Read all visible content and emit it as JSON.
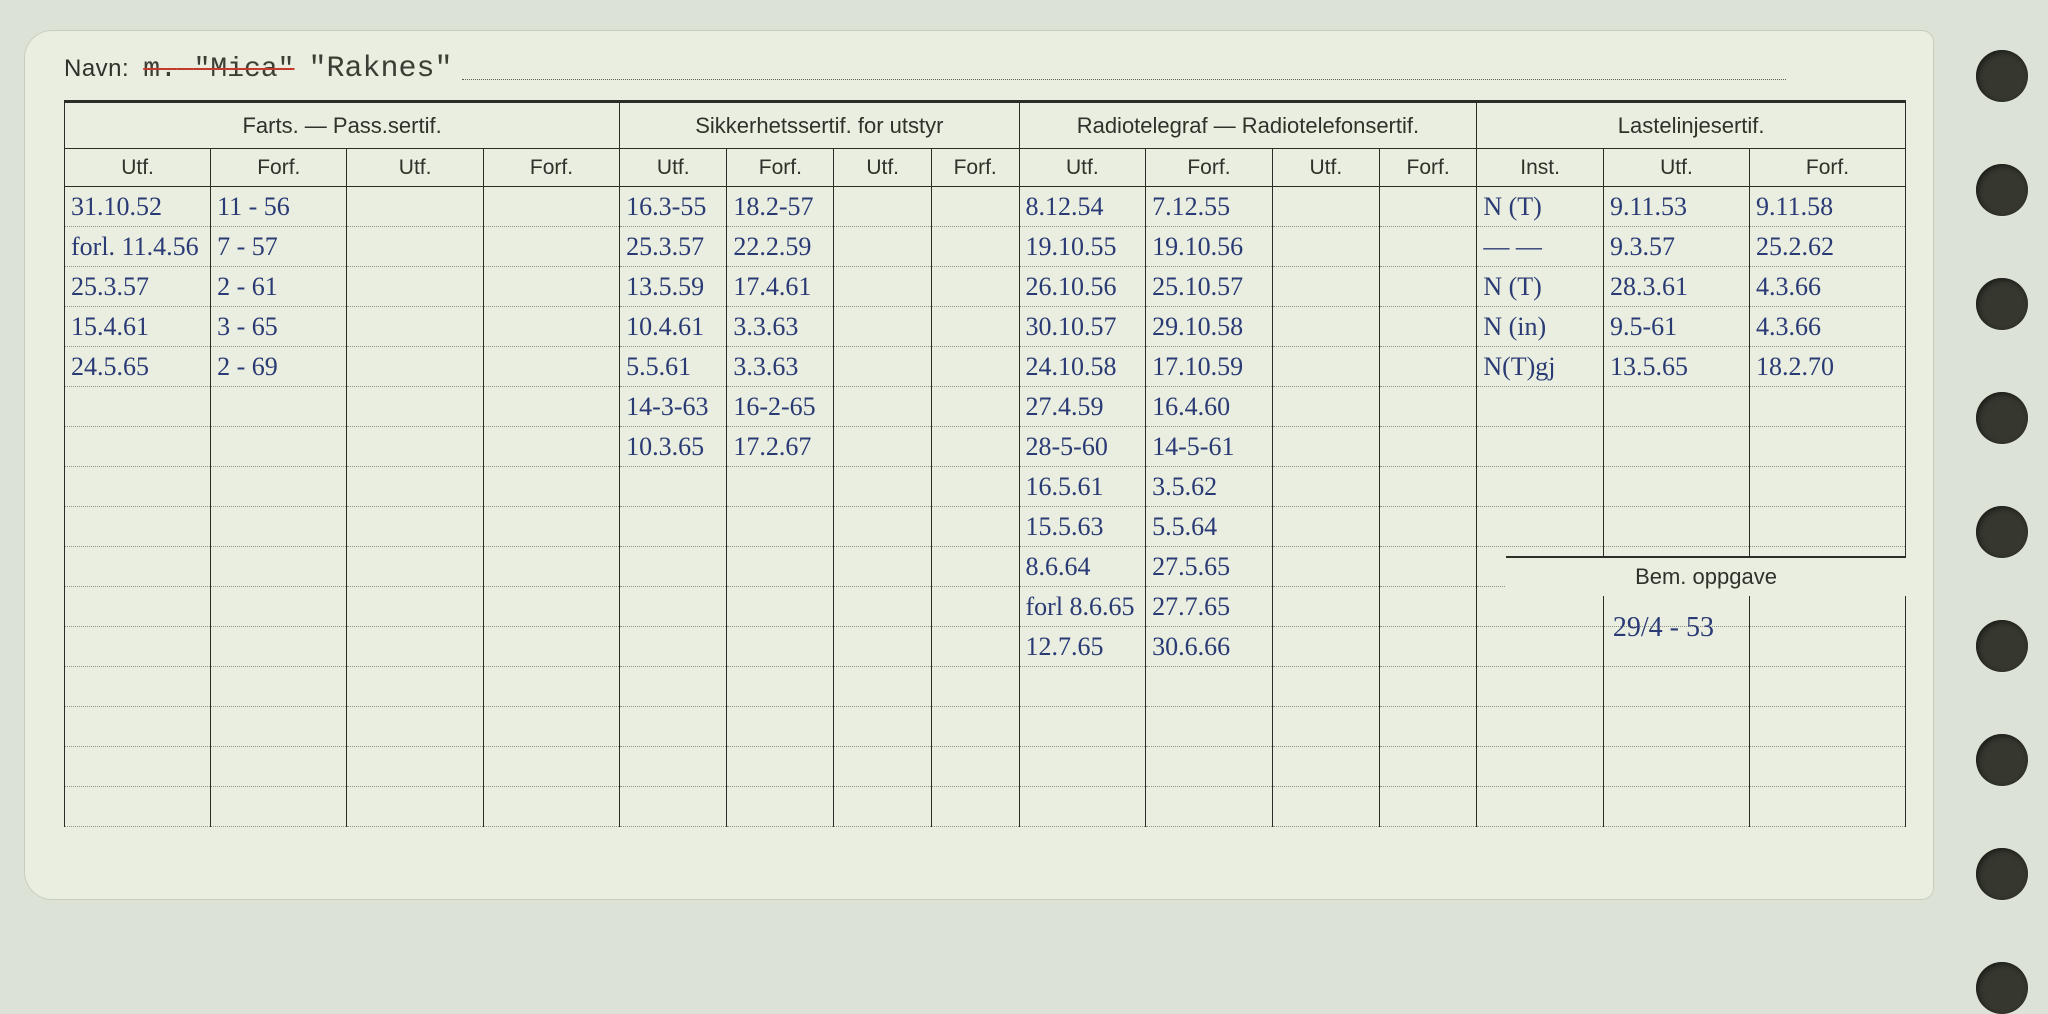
{
  "navn": {
    "label": "Navn:",
    "prefix": "m.",
    "struck": "\"Mica\"",
    "name": "\"Raknes\""
  },
  "headers": {
    "groups": [
      "Farts. — Pass.sertif.",
      "Sikkerhetssertif. for utstyr",
      "Radiotelegraf — Radiotelefonsertif.",
      "Lastelinjesertif."
    ],
    "sub": [
      "Utf.",
      "Forf.",
      "Utf.",
      "Forf.",
      "Utf.",
      "Forf.",
      "Utf.",
      "Forf.",
      "Utf.",
      "Forf.",
      "Utf.",
      "Forf.",
      "Inst.",
      "Utf.",
      "Forf."
    ],
    "bem": "Bem. oppgave"
  },
  "bem_note": "29/4 - 53",
  "rows": [
    {
      "c": [
        "31.10.52",
        "11 - 56",
        "",
        "",
        "16.3-55",
        "18.2-57",
        "",
        "",
        "8.12.54",
        "7.12.55",
        "",
        "",
        "N (T)",
        "9.11.53",
        "9.11.58"
      ]
    },
    {
      "c": [
        "forl. 11.4.56",
        "7 - 57",
        "",
        "",
        "25.3.57",
        "22.2.59",
        "",
        "",
        "19.10.55",
        "19.10.56",
        "",
        "",
        "— —",
        "9.3.57",
        "25.2.62"
      ]
    },
    {
      "c": [
        "25.3.57",
        "2 - 61",
        "",
        "",
        "13.5.59",
        "17.4.61",
        "",
        "",
        "26.10.56",
        "25.10.57",
        "",
        "",
        "N (T)",
        "28.3.61",
        "4.3.66"
      ]
    },
    {
      "c": [
        "15.4.61",
        "3 - 65",
        "",
        "",
        "10.4.61",
        "3.3.63",
        "",
        "",
        "30.10.57",
        "29.10.58",
        "",
        "",
        "N (in)",
        "9.5-61",
        "4.3.66"
      ]
    },
    {
      "c": [
        "24.5.65",
        "2 - 69",
        "",
        "",
        "5.5.61",
        "3.3.63",
        "",
        "",
        "24.10.58",
        "17.10.59",
        "",
        "",
        "N(T)gj",
        "13.5.65",
        "18.2.70"
      ]
    },
    {
      "c": [
        "",
        "",
        "",
        "",
        "14-3-63",
        "16-2-65",
        "",
        "",
        "27.4.59",
        "16.4.60",
        "",
        "",
        "",
        "",
        ""
      ]
    },
    {
      "c": [
        "",
        "",
        "",
        "",
        "10.3.65",
        "17.2.67",
        "",
        "",
        "28-5-60",
        "14-5-61",
        "",
        "",
        "",
        "",
        ""
      ]
    },
    {
      "c": [
        "",
        "",
        "",
        "",
        "",
        "",
        "",
        "",
        "16.5.61",
        "3.5.62",
        "",
        "",
        "",
        "",
        ""
      ]
    },
    {
      "c": [
        "",
        "",
        "",
        "",
        "",
        "",
        "",
        "",
        "15.5.63",
        "5.5.64",
        "",
        "",
        "",
        "",
        ""
      ]
    },
    {
      "c": [
        "",
        "",
        "",
        "",
        "",
        "",
        "",
        "",
        "8.6.64",
        "27.5.65",
        "",
        "",
        "",
        "",
        ""
      ]
    },
    {
      "c": [
        "",
        "",
        "",
        "",
        "",
        "",
        "",
        "",
        "forl 8.6.65",
        "27.7.65",
        "",
        "",
        "",
        "",
        ""
      ]
    },
    {
      "c": [
        "",
        "",
        "",
        "",
        "",
        "",
        "",
        "",
        "12.7.65",
        "30.6.66",
        "",
        "",
        "",
        "",
        ""
      ]
    },
    {
      "c": [
        "",
        "",
        "",
        "",
        "",
        "",
        "",
        "",
        "",
        "",
        "",
        "",
        "",
        "",
        ""
      ]
    },
    {
      "c": [
        "",
        "",
        "",
        "",
        "",
        "",
        "",
        "",
        "",
        "",
        "",
        "",
        "",
        "",
        ""
      ]
    },
    {
      "c": [
        "",
        "",
        "",
        "",
        "",
        "",
        "",
        "",
        "",
        "",
        "",
        "",
        "",
        "",
        ""
      ]
    },
    {
      "c": [
        "",
        "",
        "",
        "",
        "",
        "",
        "",
        "",
        "",
        "",
        "",
        "",
        "",
        "",
        ""
      ]
    }
  ],
  "holes": 9,
  "colors": {
    "ink": "#2a3a74",
    "print": "#2f312b",
    "paper": "#e9eee0",
    "bg": "#dce2d6",
    "red": "#c23b2d",
    "rule": "#2a2d28",
    "dotted": "#8a9283"
  },
  "typography": {
    "print_font": "Arial",
    "hand_font": "Brush Script MT",
    "mono_font": "Courier New",
    "header_size_pt": 16,
    "cell_size_pt": 19
  }
}
